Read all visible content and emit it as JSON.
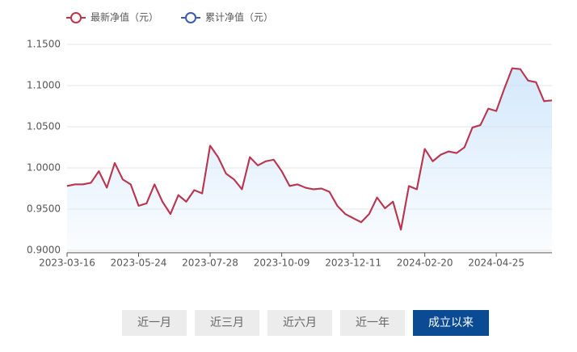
{
  "chart_data": {
    "type": "line",
    "categories": [
      "2023-03-16",
      null,
      null,
      null,
      null,
      null,
      null,
      null,
      null,
      "2023-05-24",
      null,
      null,
      null,
      null,
      null,
      null,
      null,
      null,
      "2023-07-28",
      null,
      null,
      null,
      null,
      null,
      null,
      null,
      null,
      "2023-10-09",
      null,
      null,
      null,
      null,
      null,
      null,
      null,
      null,
      "2023-12-11",
      null,
      null,
      null,
      null,
      null,
      null,
      null,
      null,
      "2024-02-20",
      null,
      null,
      null,
      null,
      null,
      null,
      null,
      null,
      "2024-04-25",
      null,
      null,
      null,
      null,
      null,
      null,
      null
    ],
    "series": [
      {
        "name": "累计净值（元）",
        "color": "#3b5bb5",
        "values": [
          0.978,
          0.98,
          0.98,
          0.982,
          0.996,
          0.976,
          1.006,
          0.986,
          0.98,
          0.954,
          0.957,
          0.98,
          0.959,
          0.944,
          0.967,
          0.959,
          0.973,
          0.969,
          1.027,
          1.013,
          0.993,
          0.986,
          0.974,
          1.013,
          1.003,
          1.008,
          1.01,
          0.996,
          0.978,
          0.98,
          0.976,
          0.974,
          0.975,
          0.971,
          0.954,
          0.944,
          0.939,
          0.934,
          0.944,
          0.964,
          0.951,
          0.959,
          0.925,
          0.978,
          0.974,
          1.023,
          1.008,
          1.016,
          1.02,
          1.018,
          1.025,
          1.049,
          1.052,
          1.072,
          1.069,
          1.096,
          1.121,
          1.12,
          1.106,
          1.104,
          1.081,
          1.082
        ]
      },
      {
        "name": "最新净值（元）",
        "color": "#c0344a",
        "values": [
          0.978,
          0.98,
          0.98,
          0.982,
          0.996,
          0.976,
          1.006,
          0.986,
          0.98,
          0.954,
          0.957,
          0.98,
          0.959,
          0.944,
          0.967,
          0.959,
          0.973,
          0.969,
          1.027,
          1.013,
          0.993,
          0.986,
          0.974,
          1.013,
          1.003,
          1.008,
          1.01,
          0.996,
          0.978,
          0.98,
          0.976,
          0.974,
          0.975,
          0.971,
          0.954,
          0.944,
          0.939,
          0.934,
          0.944,
          0.964,
          0.951,
          0.959,
          0.925,
          0.978,
          0.974,
          1.023,
          1.008,
          1.016,
          1.02,
          1.018,
          1.025,
          1.049,
          1.052,
          1.072,
          1.069,
          1.096,
          1.121,
          1.12,
          1.106,
          1.104,
          1.081,
          1.082
        ]
      }
    ],
    "ylim": [
      0.9,
      1.15
    ],
    "yticks": [
      {
        "value": 0.9,
        "label": "0.9000"
      },
      {
        "value": 0.95,
        "label": "0.9500"
      },
      {
        "value": 1.0,
        "label": "1.0000"
      },
      {
        "value": 1.05,
        "label": "1.0500"
      },
      {
        "value": 1.1,
        "label": "1.1000"
      },
      {
        "value": 1.15,
        "label": "1.1500"
      }
    ],
    "grid": true,
    "area_fill": "#cfe6fb"
  },
  "range_buttons": [
    "近一月",
    "近三月",
    "近六月",
    "近一年",
    "成立以来"
  ],
  "active_button": 4
}
